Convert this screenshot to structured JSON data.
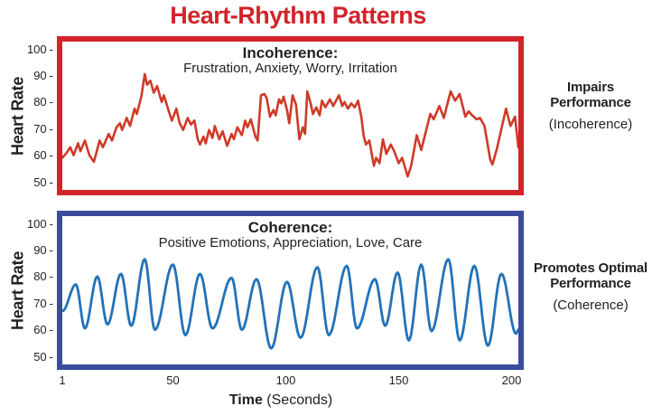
{
  "title": "Heart-Rhythm Patterns",
  "colors": {
    "title": "#d2232a",
    "red_border": "#d2232a",
    "red_line": "#cf3a27",
    "blue_border": "#3a4c9c",
    "blue_line": "#2272b8",
    "text": "#231f20"
  },
  "axes": {
    "y_label": "Heart Rate",
    "y_ticks": [
      100,
      90,
      80,
      70,
      60,
      50
    ],
    "x_ticks": [
      1,
      50,
      100,
      150,
      200
    ],
    "x_range": [
      1,
      203
    ],
    "y_range": [
      50,
      100
    ],
    "x_label_bold": "Time",
    "x_label_rest": " (Seconds)"
  },
  "panels": [
    {
      "heading": "Incoherence:",
      "subheading": "Frustration, Anxiety, Worry, Irritation",
      "border_color": "#d2232a",
      "side_bold_1": "Impairs",
      "side_bold_2": "Performance",
      "side_normal": "(Incoherence)"
    },
    {
      "heading": "Coherence:",
      "subheading": "Positive Emotions, Appreciation, Love, Care",
      "border_color": "#3a4c9c",
      "side_bold_1": "Promotes Optimal",
      "side_bold_2": "Performance",
      "side_normal": "(Coherence)"
    }
  ],
  "chart_data": [
    {
      "type": "line",
      "title": "Incoherence: Frustration, Anxiety, Worry, Irritation",
      "xlabel": "Time (Seconds)",
      "ylabel": "Heart Rate",
      "xlim": [
        1,
        203
      ],
      "ylim": [
        50,
        100
      ],
      "x_ticks": [
        1,
        50,
        100,
        150,
        200
      ],
      "y_ticks": [
        50,
        60,
        70,
        80,
        90,
        100
      ],
      "grid": false,
      "legend": "none",
      "line_color": "#cf3a27",
      "interpolation": "linear",
      "points": [
        [
          1,
          59
        ],
        [
          3,
          61
        ],
        [
          4.5,
          63
        ],
        [
          6,
          60
        ],
        [
          8,
          64.5
        ],
        [
          9,
          61.5
        ],
        [
          11,
          65.5
        ],
        [
          13,
          60
        ],
        [
          15,
          57.5
        ],
        [
          17.5,
          65.5
        ],
        [
          19,
          63
        ],
        [
          21.5,
          68
        ],
        [
          23,
          65.5
        ],
        [
          25,
          70.5
        ],
        [
          26.5,
          72
        ],
        [
          27.5,
          69.5
        ],
        [
          29.5,
          74
        ],
        [
          31,
          71
        ],
        [
          33,
          77.5
        ],
        [
          34,
          75.5
        ],
        [
          36,
          82
        ],
        [
          37.5,
          90.5
        ],
        [
          38.5,
          86.5
        ],
        [
          40,
          88
        ],
        [
          41.5,
          83.5
        ],
        [
          43,
          86
        ],
        [
          45,
          80
        ],
        [
          46,
          82.5
        ],
        [
          48,
          77
        ],
        [
          49.5,
          73
        ],
        [
          51.5,
          77.5
        ],
        [
          53,
          72
        ],
        [
          54.5,
          69.5
        ],
        [
          56.5,
          74
        ],
        [
          58,
          71.5
        ],
        [
          59.5,
          73
        ],
        [
          61,
          66
        ],
        [
          62,
          64
        ],
        [
          63.5,
          67
        ],
        [
          64.5,
          64.5
        ],
        [
          66,
          69.5
        ],
        [
          67.5,
          66.5
        ],
        [
          68.5,
          71
        ],
        [
          70.5,
          66
        ],
        [
          72,
          69
        ],
        [
          74,
          63.5
        ],
        [
          76,
          68
        ],
        [
          77,
          66
        ],
        [
          78.5,
          70.5
        ],
        [
          80.5,
          67.5
        ],
        [
          82,
          73
        ],
        [
          83,
          70.5
        ],
        [
          84.5,
          73.5
        ],
        [
          86.5,
          67
        ],
        [
          87.5,
          65.5
        ],
        [
          89,
          82.5
        ],
        [
          90.5,
          83
        ],
        [
          91.5,
          81.5
        ],
        [
          93,
          74.5
        ],
        [
          94.5,
          77
        ],
        [
          95.5,
          75
        ],
        [
          97,
          81
        ],
        [
          98,
          79.5
        ],
        [
          99,
          82
        ],
        [
          100.5,
          77
        ],
        [
          101.5,
          72
        ],
        [
          103,
          82.5
        ],
        [
          104.5,
          79
        ],
        [
          106,
          66
        ],
        [
          107.5,
          70.5
        ],
        [
          108.5,
          68
        ],
        [
          109.5,
          84
        ],
        [
          111,
          79.5
        ],
        [
          112,
          75.5
        ],
        [
          113.5,
          78
        ],
        [
          115,
          75
        ],
        [
          116,
          80.5
        ],
        [
          117.5,
          78
        ],
        [
          119.5,
          81
        ],
        [
          121,
          78.5
        ],
        [
          123.5,
          82.5
        ],
        [
          125,
          78.5
        ],
        [
          126,
          80
        ],
        [
          127.5,
          77.5
        ],
        [
          129,
          79.5
        ],
        [
          130.5,
          78
        ],
        [
          132,
          80.5
        ],
        [
          133.5,
          74
        ],
        [
          134.5,
          67
        ],
        [
          135.5,
          64
        ],
        [
          137,
          65.5
        ],
        [
          139,
          56
        ],
        [
          140,
          59
        ],
        [
          141.5,
          57
        ],
        [
          143,
          66
        ],
        [
          144.5,
          60.5
        ],
        [
          146.5,
          64
        ],
        [
          148,
          61.5
        ],
        [
          150,
          57
        ],
        [
          151.5,
          59
        ],
        [
          154,
          52
        ],
        [
          155.5,
          56
        ],
        [
          158,
          67.5
        ],
        [
          160,
          62
        ],
        [
          164,
          75.5
        ],
        [
          165.5,
          73.5
        ],
        [
          168,
          78.5
        ],
        [
          170,
          74
        ],
        [
          173,
          84
        ],
        [
          175,
          80.5
        ],
        [
          177,
          83
        ],
        [
          179.5,
          74.5
        ],
        [
          181,
          76.5
        ],
        [
          182.5,
          75
        ],
        [
          184.5,
          73.5
        ],
        [
          186,
          74
        ],
        [
          188,
          71
        ],
        [
          190.5,
          58.5
        ],
        [
          191.5,
          56.5
        ],
        [
          193.5,
          62.5
        ],
        [
          197.5,
          77.5
        ],
        [
          199.5,
          71
        ],
        [
          201.5,
          74.5
        ],
        [
          203,
          63
        ]
      ]
    },
    {
      "type": "line",
      "title": "Coherence: Positive Emotions, Appreciation, Love, Care",
      "xlabel": "Time (Seconds)",
      "ylabel": "Heart Rate",
      "xlim": [
        1,
        203
      ],
      "ylim": [
        50,
        100
      ],
      "x_ticks": [
        1,
        50,
        100,
        150,
        200
      ],
      "y_ticks": [
        50,
        60,
        70,
        80,
        90,
        100
      ],
      "grid": false,
      "legend": "none",
      "line_color": "#2272b8",
      "interpolation": "smooth",
      "points": [
        [
          1,
          67
        ],
        [
          7,
          77
        ],
        [
          11,
          60.5
        ],
        [
          16.5,
          80
        ],
        [
          21,
          62
        ],
        [
          27,
          81
        ],
        [
          31.5,
          61.5
        ],
        [
          37.5,
          86.5
        ],
        [
          42,
          60
        ],
        [
          50,
          84.5
        ],
        [
          55.5,
          58
        ],
        [
          62,
          81
        ],
        [
          67.5,
          60.5
        ],
        [
          76,
          79.5
        ],
        [
          80.5,
          60
        ],
        [
          87,
          79
        ],
        [
          93.5,
          53
        ],
        [
          100.5,
          78
        ],
        [
          106.5,
          57
        ],
        [
          114,
          83.5
        ],
        [
          119,
          58
        ],
        [
          127,
          84
        ],
        [
          131.5,
          60.5
        ],
        [
          139.5,
          79
        ],
        [
          144,
          61.5
        ],
        [
          149.5,
          81.5
        ],
        [
          154.5,
          56
        ],
        [
          160,
          84.5
        ],
        [
          164.5,
          59.5
        ],
        [
          172,
          86.5
        ],
        [
          177,
          56
        ],
        [
          183.5,
          84
        ],
        [
          189.5,
          54
        ],
        [
          195.5,
          81
        ],
        [
          202,
          58.5
        ],
        [
          203,
          60
        ]
      ]
    }
  ]
}
